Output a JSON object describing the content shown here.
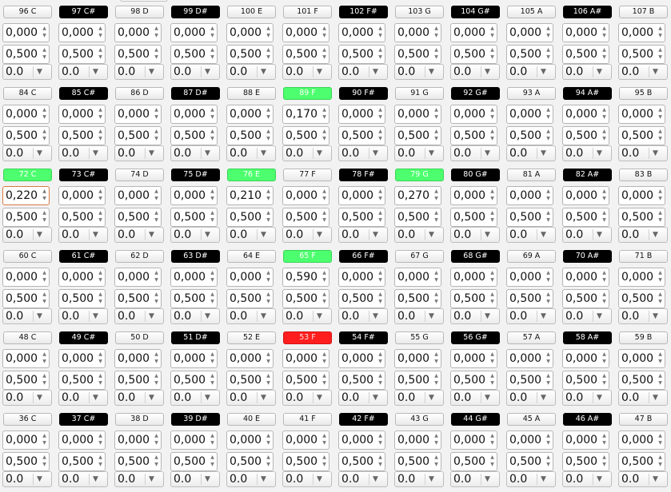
{
  "rows": [
    {
      "keys": [
        {
          "label": "96 C",
          "style": "white",
          "value": "0,000",
          "second": "0,500",
          "select": "0.0"
        },
        {
          "label": "97 C#",
          "style": "black",
          "value": "0,000",
          "second": "0,500",
          "select": "0.0"
        },
        {
          "label": "98 D",
          "style": "white",
          "value": "0,000",
          "second": "0,500",
          "select": "0.0"
        },
        {
          "label": "99 D#",
          "style": "black",
          "value": "0,000",
          "second": "0,500",
          "select": "0.0"
        },
        {
          "label": "100 E",
          "style": "white",
          "value": "0,000",
          "second": "0,500",
          "select": "0.0"
        },
        {
          "label": "101 F",
          "style": "white",
          "value": "0,000",
          "second": "0,500",
          "select": "0.0"
        },
        {
          "label": "102 F#",
          "style": "black",
          "value": "0,000",
          "second": "0,500",
          "select": "0.0"
        },
        {
          "label": "103 G",
          "style": "white",
          "value": "0,000",
          "second": "0,500",
          "select": "0.0"
        },
        {
          "label": "104 G#",
          "style": "black",
          "value": "0,000",
          "second": "0,500",
          "select": "0.0"
        },
        {
          "label": "105 A",
          "style": "white",
          "value": "0,000",
          "second": "0,500",
          "select": "0.0"
        },
        {
          "label": "106 A#",
          "style": "black",
          "value": "0,000",
          "second": "0,500",
          "select": "0.0"
        },
        {
          "label": "107 B",
          "style": "white",
          "value": "0,000",
          "second": "0,500",
          "select": "0.0"
        }
      ]
    },
    {
      "keys": [
        {
          "label": "84 C",
          "style": "white",
          "value": "0,000",
          "second": "0,500",
          "select": "0.0"
        },
        {
          "label": "85 C#",
          "style": "black",
          "value": "0,000",
          "second": "0,500",
          "select": "0.0"
        },
        {
          "label": "86 D",
          "style": "white",
          "value": "0,000",
          "second": "0,500",
          "select": "0.0"
        },
        {
          "label": "87 D#",
          "style": "black",
          "value": "0,000",
          "second": "0,500",
          "select": "0.0"
        },
        {
          "label": "88 E",
          "style": "white",
          "value": "0,000",
          "second": "0,500",
          "select": "0.0"
        },
        {
          "label": "89 F",
          "style": "green",
          "value": "0,170",
          "second": "0,500",
          "select": "0.0"
        },
        {
          "label": "90 F#",
          "style": "black",
          "value": "0,000",
          "second": "0,500",
          "select": "0.0"
        },
        {
          "label": "91 G",
          "style": "white",
          "value": "0,000",
          "second": "0,500",
          "select": "0.0"
        },
        {
          "label": "92 G#",
          "style": "black",
          "value": "0,000",
          "second": "0,500",
          "select": "0.0"
        },
        {
          "label": "93 A",
          "style": "white",
          "value": "0,000",
          "second": "0,500",
          "select": "0.0"
        },
        {
          "label": "94 A#",
          "style": "black",
          "value": "0,000",
          "second": "0,500",
          "select": "0.0"
        },
        {
          "label": "95 B",
          "style": "white",
          "value": "0,000",
          "second": "0,500",
          "select": "0.0"
        }
      ]
    },
    {
      "keys": [
        {
          "label": "72 C",
          "style": "green",
          "value": "0,220",
          "second": "0,500",
          "select": "0.0",
          "focused": true
        },
        {
          "label": "73 C#",
          "style": "black",
          "value": "0,000",
          "second": "0,500",
          "select": "0.0"
        },
        {
          "label": "74 D",
          "style": "white",
          "value": "0,000",
          "second": "0,500",
          "select": "0.0"
        },
        {
          "label": "75 D#",
          "style": "black",
          "value": "0,000",
          "second": "0,500",
          "select": "0.0"
        },
        {
          "label": "76 E",
          "style": "green",
          "value": "0,210",
          "second": "0,500",
          "select": "0.0"
        },
        {
          "label": "77 F",
          "style": "white",
          "value": "0,000",
          "second": "0,500",
          "select": "0.0"
        },
        {
          "label": "78 F#",
          "style": "black",
          "value": "0,000",
          "second": "0,500",
          "select": "0.0"
        },
        {
          "label": "79 G",
          "style": "green",
          "value": "0,270",
          "second": "0,500",
          "select": "0.0"
        },
        {
          "label": "80 G#",
          "style": "black",
          "value": "0,000",
          "second": "0,500",
          "select": "0.0"
        },
        {
          "label": "81 A",
          "style": "white",
          "value": "0,000",
          "second": "0,500",
          "select": "0.0"
        },
        {
          "label": "82 A#",
          "style": "black",
          "value": "0,000",
          "second": "0,500",
          "select": "0.0"
        },
        {
          "label": "83 B",
          "style": "white",
          "value": "0,000",
          "second": "0,500",
          "select": "0.0"
        }
      ]
    },
    {
      "keys": [
        {
          "label": "60 C",
          "style": "white",
          "value": "0,000",
          "second": "0,500",
          "select": "0.0"
        },
        {
          "label": "61 C#",
          "style": "black",
          "value": "0,000",
          "second": "0,500",
          "select": "0.0"
        },
        {
          "label": "62 D",
          "style": "white",
          "value": "0,000",
          "second": "0,500",
          "select": "0.0"
        },
        {
          "label": "63 D#",
          "style": "black",
          "value": "0,000",
          "second": "0,500",
          "select": "0.0"
        },
        {
          "label": "64 E",
          "style": "white",
          "value": "0,000",
          "second": "0,500",
          "select": "0.0"
        },
        {
          "label": "65 F",
          "style": "green",
          "value": "0,590",
          "second": "0,500",
          "select": "0.0"
        },
        {
          "label": "66 F#",
          "style": "black",
          "value": "0,000",
          "second": "0,500",
          "select": "0.0"
        },
        {
          "label": "67 G",
          "style": "white",
          "value": "0,000",
          "second": "0,500",
          "select": "0.0"
        },
        {
          "label": "68 G#",
          "style": "black",
          "value": "0,000",
          "second": "0,500",
          "select": "0.0"
        },
        {
          "label": "69 A",
          "style": "white",
          "value": "0,000",
          "second": "0,500",
          "select": "0.0"
        },
        {
          "label": "70 A#",
          "style": "black",
          "value": "0,000",
          "second": "0,500",
          "select": "0.0"
        },
        {
          "label": "71 B",
          "style": "white",
          "value": "0,000",
          "second": "0,500",
          "select": "0.0"
        }
      ]
    },
    {
      "keys": [
        {
          "label": "48 C",
          "style": "white",
          "value": "0,000",
          "second": "0,500",
          "select": "0.0"
        },
        {
          "label": "49 C#",
          "style": "black",
          "value": "0,000",
          "second": "0,500",
          "select": "0.0"
        },
        {
          "label": "50 D",
          "style": "white",
          "value": "0,000",
          "second": "0,500",
          "select": "0.0"
        },
        {
          "label": "51 D#",
          "style": "black",
          "value": "0,000",
          "second": "0,500",
          "select": "0.0"
        },
        {
          "label": "52 E",
          "style": "white",
          "value": "0,000",
          "second": "0,500",
          "select": "0.0"
        },
        {
          "label": "53 F",
          "style": "red",
          "value": "0,000",
          "second": "0,500",
          "select": "0.0"
        },
        {
          "label": "54 F#",
          "style": "black",
          "value": "0,000",
          "second": "0,500",
          "select": "0.0"
        },
        {
          "label": "55 G",
          "style": "white",
          "value": "0,000",
          "second": "0,500",
          "select": "0.0"
        },
        {
          "label": "56 G#",
          "style": "black",
          "value": "0,000",
          "second": "0,500",
          "select": "0.0"
        },
        {
          "label": "57 A",
          "style": "white",
          "value": "0,000",
          "second": "0,500",
          "select": "0.0"
        },
        {
          "label": "58 A#",
          "style": "black",
          "value": "0,000",
          "second": "0,500",
          "select": "0.0"
        },
        {
          "label": "59 B",
          "style": "white",
          "value": "0,000",
          "second": "0,500",
          "select": "0.0"
        }
      ]
    },
    {
      "keys": [
        {
          "label": "36 C",
          "style": "white",
          "value": "0,000",
          "second": "0,500",
          "select": "0.0"
        },
        {
          "label": "37 C#",
          "style": "black",
          "value": "0,000",
          "second": "0,500",
          "select": "0.0"
        },
        {
          "label": "38 D",
          "style": "white",
          "value": "0,000",
          "second": "0,500",
          "select": "0.0"
        },
        {
          "label": "39 D#",
          "style": "black",
          "value": "0,000",
          "second": "0,500",
          "select": "0.0"
        },
        {
          "label": "40 E",
          "style": "white",
          "value": "0,000",
          "second": "0,500",
          "select": "0.0"
        },
        {
          "label": "41 F",
          "style": "white",
          "value": "0,000",
          "second": "0,500",
          "select": "0.0"
        },
        {
          "label": "42 F#",
          "style": "black",
          "value": "0,000",
          "second": "0,500",
          "select": "0.0"
        },
        {
          "label": "43 G",
          "style": "white",
          "value": "0,000",
          "second": "0,500",
          "select": "0.0"
        },
        {
          "label": "44 G#",
          "style": "black",
          "value": "0,000",
          "second": "0,500",
          "select": "0.0"
        },
        {
          "label": "45 A",
          "style": "white",
          "value": "0,000",
          "second": "0,500",
          "select": "0.0"
        },
        {
          "label": "46 A#",
          "style": "black",
          "value": "0,000",
          "second": "0,500",
          "select": "0.0"
        },
        {
          "label": "47 B",
          "style": "white",
          "value": "0,000",
          "second": "0,500",
          "select": "0.0"
        }
      ]
    }
  ],
  "icons": {
    "spin_up": "triangle-up-icon",
    "spin_down": "triangle-down-icon",
    "dropdown": "chevron-down-icon"
  },
  "colors": {
    "active_green": "#4dff6e",
    "active_red": "#ff1e1e",
    "black_key": "#000000",
    "focus_border": "#d97a40"
  }
}
